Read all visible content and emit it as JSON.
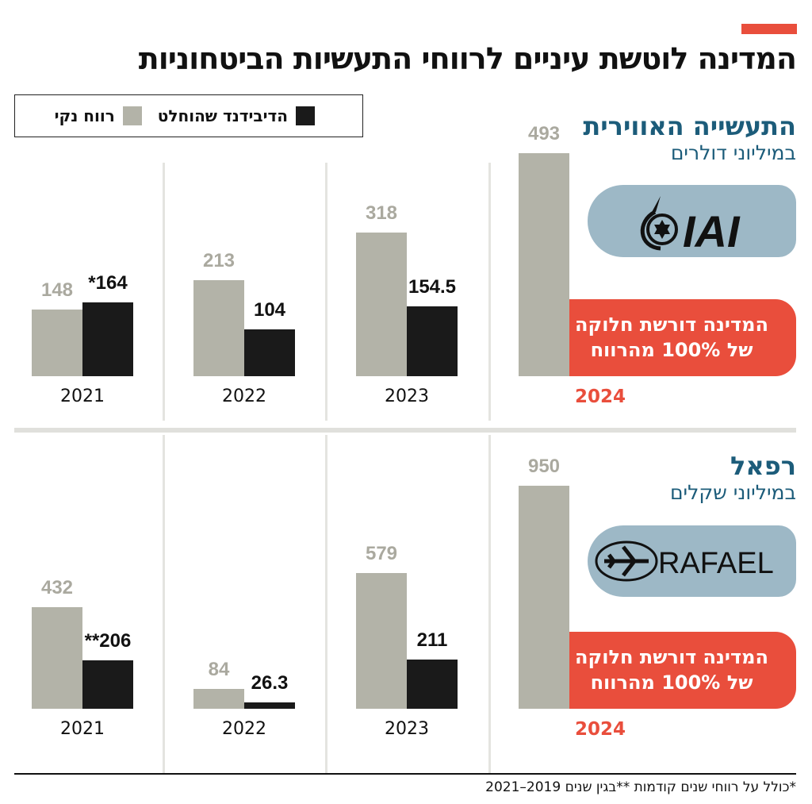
{
  "title": "המדינה לוטשת עיניים לרווחי התעשיות הביטחוניות",
  "legend": {
    "dividend": "הדיבידנד שהוחלט",
    "profit": "רווח נקי"
  },
  "colors": {
    "profit": "#b3b3a8",
    "dividend": "#1a1a1a",
    "accent": "#e94e3c",
    "title_blue": "#1c5c7a",
    "logo_bg": "#9db8c6"
  },
  "footnote": "*כולל על רווחי שנים קודמות **בגין שנים 2019–2021",
  "chart_data": [
    {
      "type": "bar",
      "company": "התעשייה האווירית",
      "unit": "במיליוני דולרים",
      "logo_text": "IAI",
      "callout": [
        "המדינה דורשת חלוקה",
        "של 100% מהרווח"
      ],
      "categories": [
        "2021",
        "2022",
        "2023",
        "2024"
      ],
      "series": [
        {
          "name": "רווח נקי",
          "values": [
            148,
            213,
            318,
            493
          ],
          "labels": [
            "148",
            "213",
            "318",
            "493"
          ]
        },
        {
          "name": "הדיבידנד שהוחלט",
          "values": [
            164,
            104,
            154.5,
            null
          ],
          "labels": [
            "*164",
            "104",
            "154.5",
            ""
          ]
        }
      ],
      "ylim": [
        0,
        493
      ]
    },
    {
      "type": "bar",
      "company": "רפאל",
      "unit": "במיליוני שקלים",
      "logo_text": "RAFAEL",
      "callout": [
        "המדינה דורשת חלוקה",
        "של 100% מהרווח"
      ],
      "categories": [
        "2021",
        "2022",
        "2023",
        "2024"
      ],
      "series": [
        {
          "name": "רווח נקי",
          "values": [
            432,
            84,
            579,
            950
          ],
          "labels": [
            "432",
            "84",
            "579",
            "950"
          ]
        },
        {
          "name": "הדיבידנד שהוחלט",
          "values": [
            206,
            26.3,
            211,
            null
          ],
          "labels": [
            "**206",
            "26.3",
            "211",
            ""
          ]
        }
      ],
      "ylim": [
        0,
        950
      ]
    }
  ]
}
